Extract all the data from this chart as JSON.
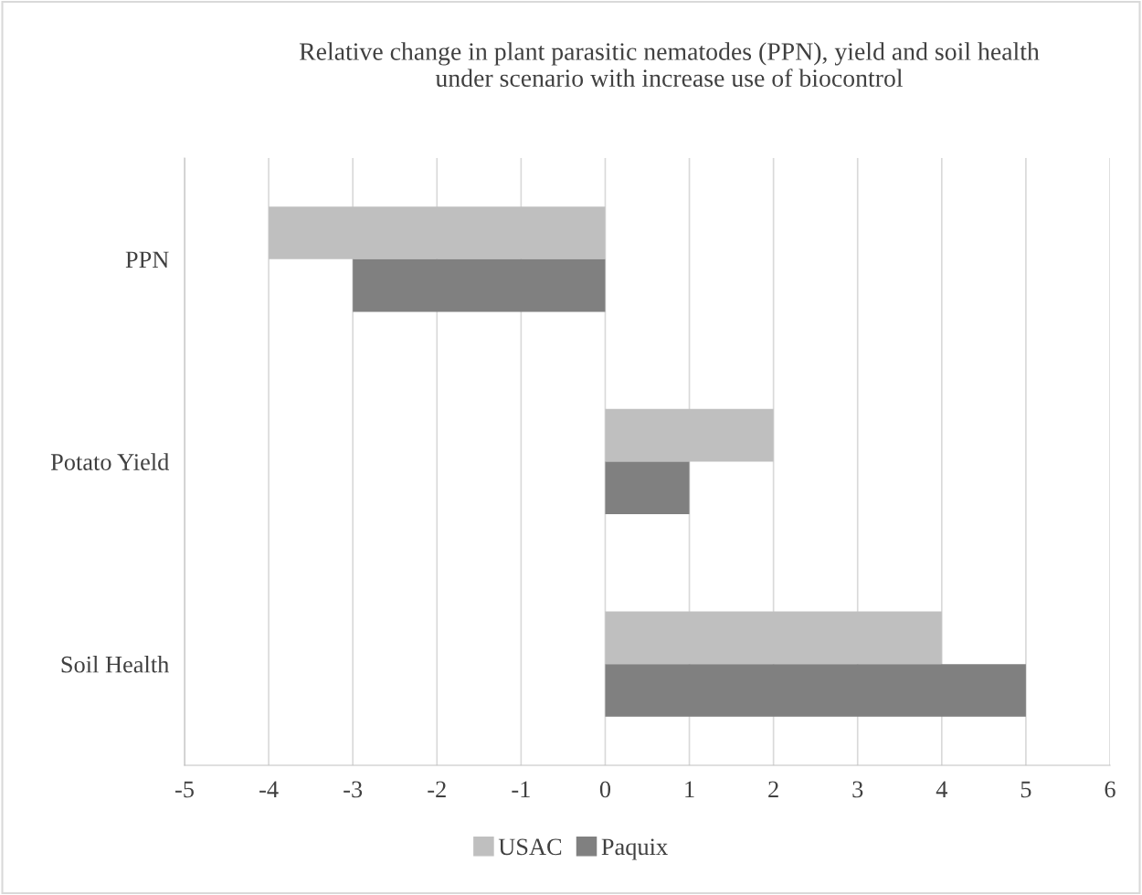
{
  "chart_data": {
    "type": "bar",
    "orientation": "horizontal",
    "title": "Relative change in plant parasitic nematodes (PPN), yield and soil health\nunder scenario with increase use of biocontrol",
    "categories": [
      "PPN",
      "Potato Yield",
      "Soil Health"
    ],
    "series": [
      {
        "name": "USAC",
        "color": "#bfbfbf",
        "values": [
          -4,
          2,
          4
        ]
      },
      {
        "name": "Paquix",
        "color": "#808080",
        "values": [
          -3,
          1,
          5
        ]
      }
    ],
    "xlim": [
      -5,
      6
    ],
    "xticks": [
      -5,
      -4,
      -3,
      -2,
      -1,
      0,
      1,
      2,
      3,
      4,
      5,
      6
    ],
    "grid": "x",
    "legend": "bottom"
  }
}
